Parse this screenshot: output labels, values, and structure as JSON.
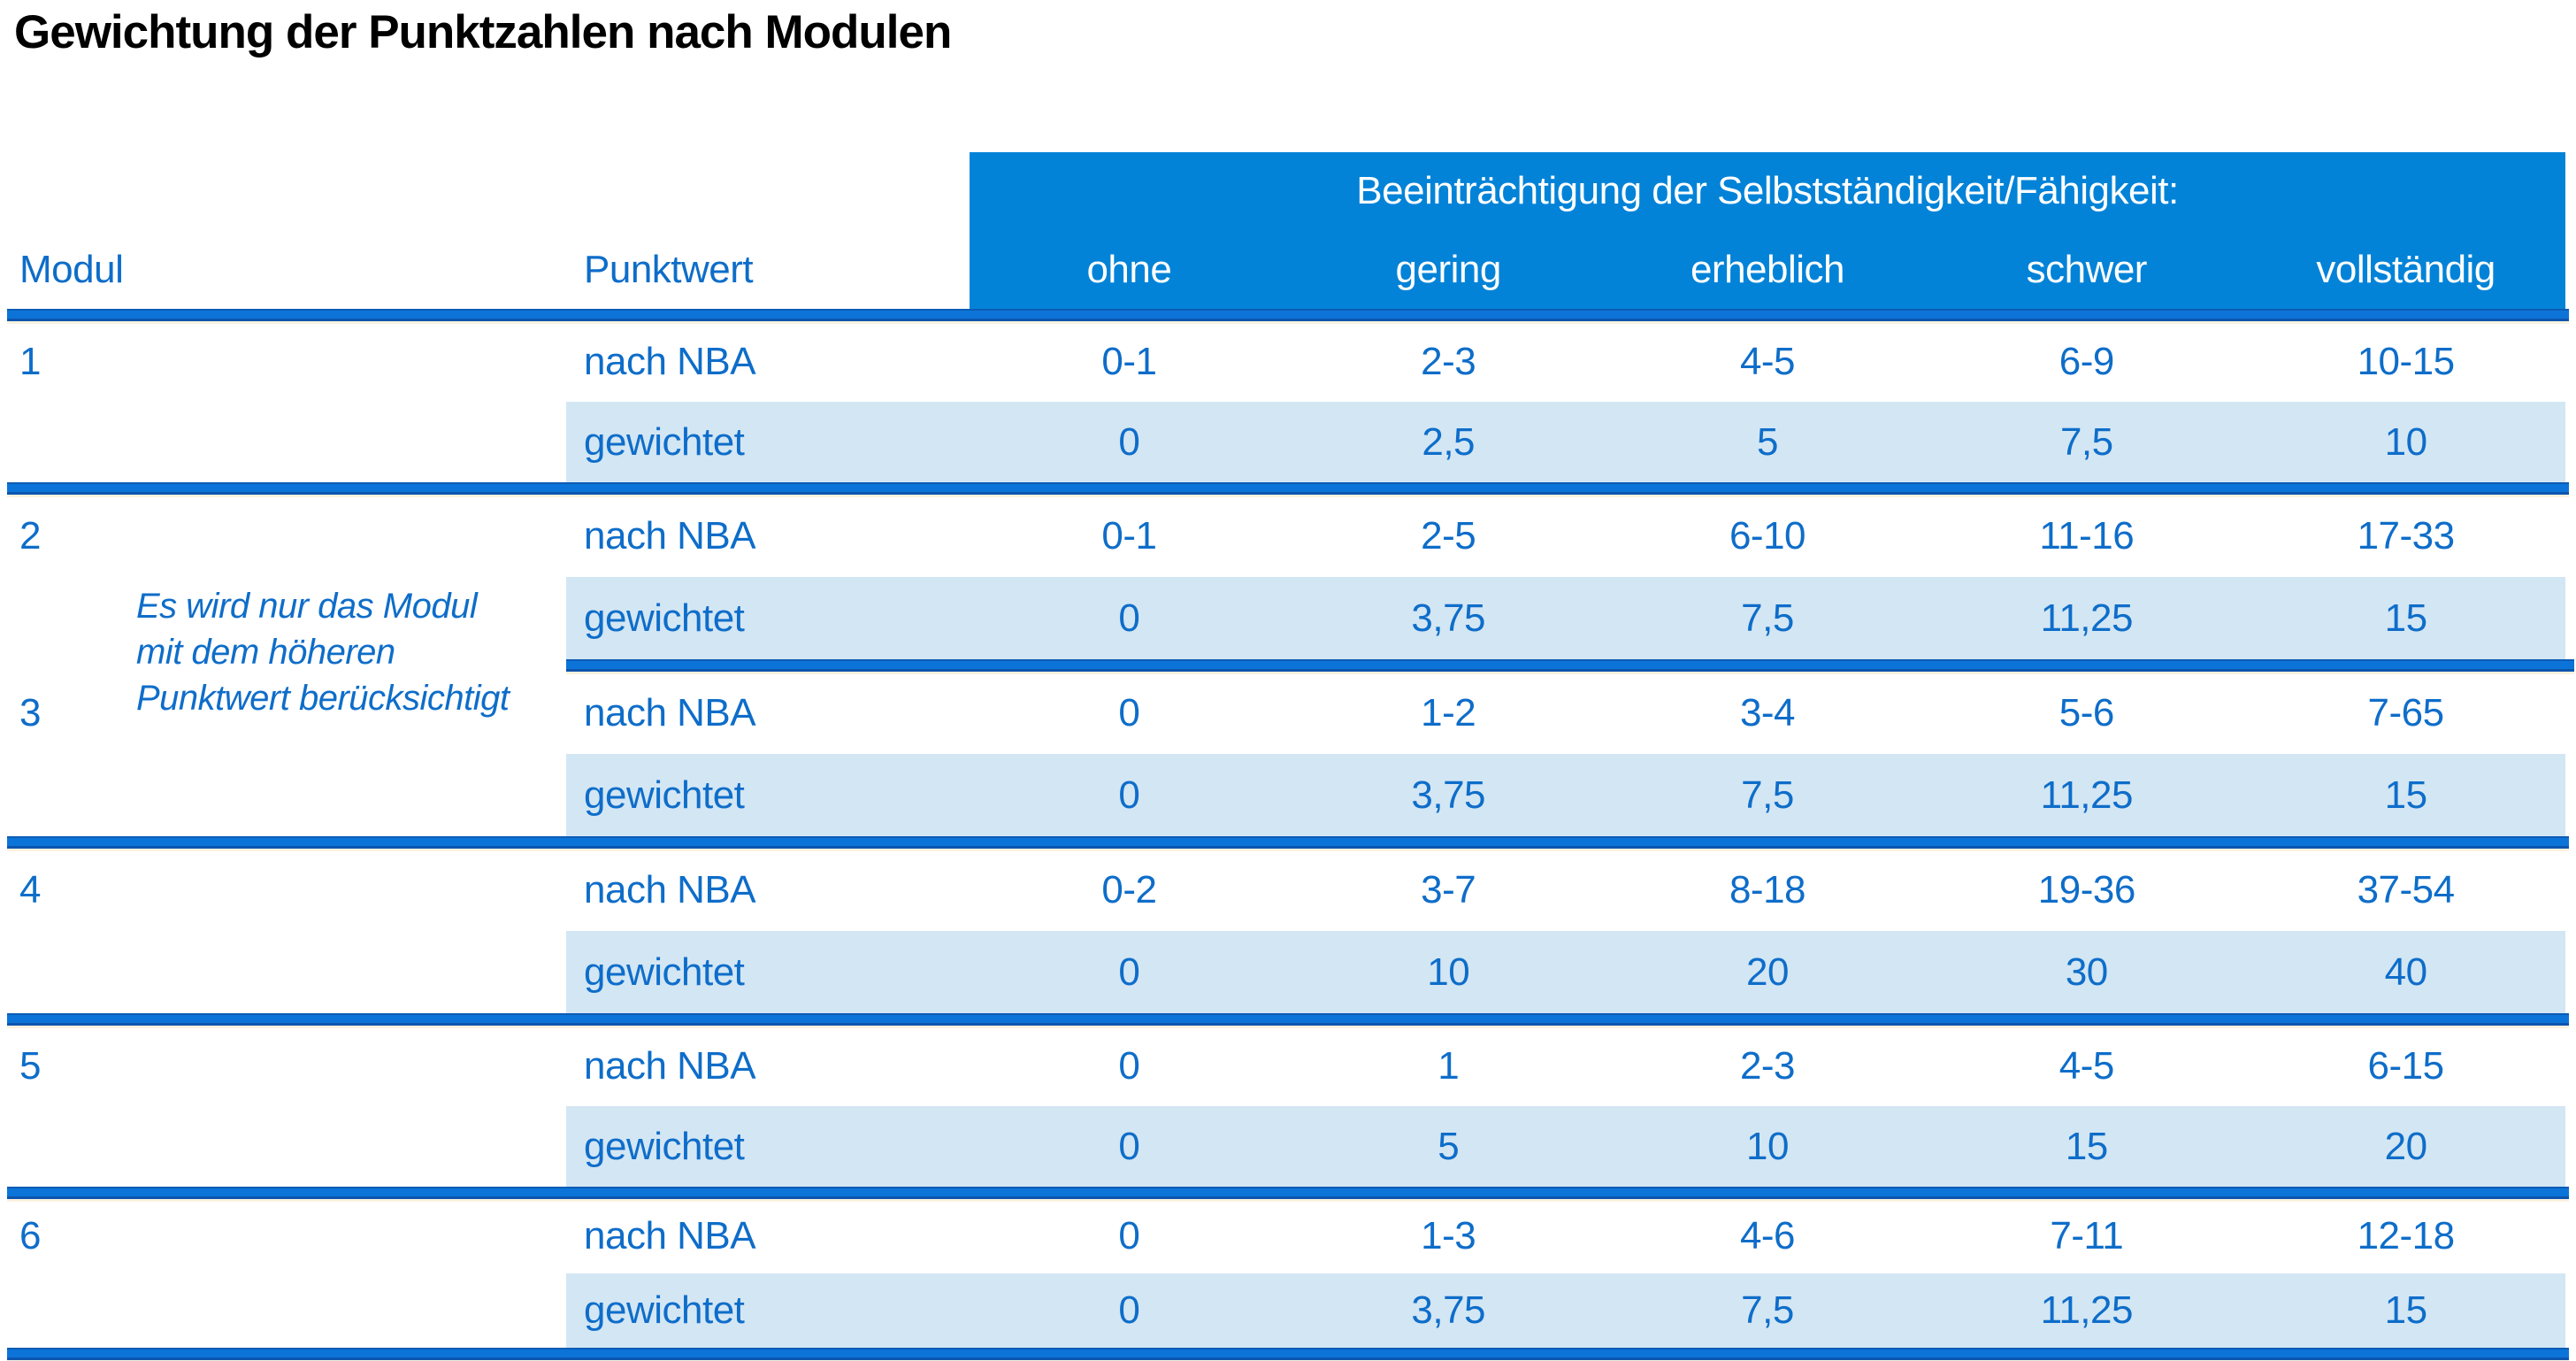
{
  "title": "Gewichtung der Punktzahlen nach Modulen",
  "colors": {
    "header_blue": "#0283d8",
    "text_blue": "#0e6dc9",
    "row_light_blue": "#d3e6f4",
    "separator_blue": "#0c74d8",
    "title_black": "#000000"
  },
  "table": {
    "modul_header": "Modul",
    "punktwert_header": "Punktwert",
    "span_header": "Beeinträchtigung der Selbstständigkeit/Fähigkeit:",
    "severity_labels": [
      "ohne",
      "gering",
      "erheblich",
      "schwer",
      "vollständig"
    ],
    "row_labels": {
      "nba": "nach NBA",
      "weighted": "gewichtet"
    },
    "note": "Es wird nur das Modul\nmit dem höheren\nPunktwert berücksichtigt",
    "modules": [
      {
        "id": "1",
        "nba": [
          "0-1",
          "2-3",
          "4-5",
          "6-9",
          "10-15"
        ],
        "weighted": [
          "0",
          "2,5",
          "5",
          "7,5",
          "10"
        ]
      },
      {
        "id": "2",
        "nba": [
          "0-1",
          "2-5",
          "6-10",
          "11-16",
          "17-33"
        ],
        "weighted": [
          "0",
          "3,75",
          "7,5",
          "11,25",
          "15"
        ]
      },
      {
        "id": "3",
        "nba": [
          "0",
          "1-2",
          "3-4",
          "5-6",
          "7-65"
        ],
        "weighted": [
          "0",
          "3,75",
          "7,5",
          "11,25",
          "15"
        ]
      },
      {
        "id": "4",
        "nba": [
          "0-2",
          "3-7",
          "8-18",
          "19-36",
          "37-54"
        ],
        "weighted": [
          "0",
          "10",
          "20",
          "30",
          "40"
        ]
      },
      {
        "id": "5",
        "nba": [
          "0",
          "1",
          "2-3",
          "4-5",
          "6-15"
        ],
        "weighted": [
          "0",
          "5",
          "10",
          "15",
          "20"
        ]
      },
      {
        "id": "6",
        "nba": [
          "0",
          "1-3",
          "4-6",
          "7-11",
          "12-18"
        ],
        "weighted": [
          "0",
          "3,75",
          "7,5",
          "11,25",
          "15"
        ]
      }
    ]
  }
}
